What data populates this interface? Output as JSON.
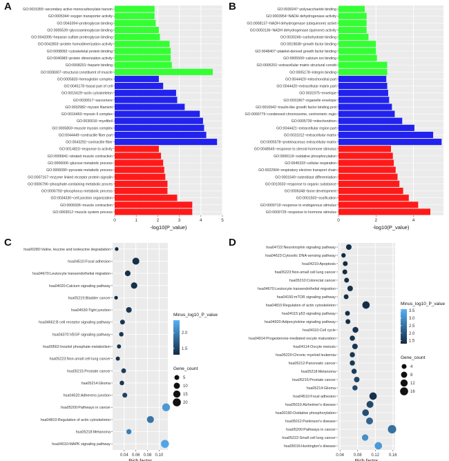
{
  "chart_data": [
    {
      "panel": "A",
      "type": "bar",
      "orientation": "horizontal",
      "xlabel": "-log10(P_value)",
      "xlim": [
        0,
        5
      ],
      "xticks": [
        0,
        1,
        2,
        3,
        4,
        5
      ],
      "colors": {
        "green": "#33ff33",
        "blue": "#2222ee",
        "red": "#ff1a1a"
      },
      "bars": [
        {
          "label": "GO:0015355~secondary active monocarboxylate transm",
          "value": 1.85,
          "group": "green"
        },
        {
          "label": "GO:0005344~oxygen transporter activity",
          "value": 1.85,
          "group": "green"
        },
        {
          "label": "GO:0043394~proteoglycan binding",
          "value": 1.9,
          "group": "green"
        },
        {
          "label": "GO:0005539~glycosaminoglycan binding",
          "value": 2.05,
          "group": "green"
        },
        {
          "label": "GO:0043395~heparan sulfate proteoglycan binding",
          "value": 2.1,
          "group": "green"
        },
        {
          "label": "GO:0042803~protein homodimerization activity",
          "value": 2.55,
          "group": "green"
        },
        {
          "label": "GO:0008092~cytoskeletal protein binding",
          "value": 2.6,
          "group": "green"
        },
        {
          "label": "GO:0046983~protein dimerization activity",
          "value": 2.6,
          "group": "green"
        },
        {
          "label": "GO:0008201~heparin binding",
          "value": 2.65,
          "group": "green"
        },
        {
          "label": "GO:0008307~structural constituent of muscle",
          "value": 4.55,
          "group": "green"
        },
        {
          "label": "GO:0005833~hemoglobin complex",
          "value": 2.05,
          "group": "blue"
        },
        {
          "label": "GO:0045178~basal part of cell",
          "value": 2.25,
          "group": "blue"
        },
        {
          "label": "GO:0015629~actin cytoskeleton",
          "value": 2.85,
          "group": "blue"
        },
        {
          "label": "GO:0030017~sarcomere",
          "value": 2.9,
          "group": "blue"
        },
        {
          "label": "GO:0032982~myosin filament",
          "value": 3.25,
          "group": "blue"
        },
        {
          "label": "GO:0016460~myosin II complex",
          "value": 3.95,
          "group": "blue"
        },
        {
          "label": "GO:0030016~myofibril",
          "value": 4.1,
          "group": "blue"
        },
        {
          "label": "GO:0005859~muscle myosin complex",
          "value": 4.15,
          "group": "blue"
        },
        {
          "label": "GO:0044449~contractile fiber part",
          "value": 4.25,
          "group": "blue"
        },
        {
          "label": "GO:0043292~contractile fiber",
          "value": 4.75,
          "group": "blue"
        },
        {
          "label": "GO:0014823~response to activity",
          "value": 2.05,
          "group": "red"
        },
        {
          "label": "GO:0006941~striated muscle contraction",
          "value": 2.15,
          "group": "red"
        },
        {
          "label": "GO:0006006~glucose metabolic process",
          "value": 2.25,
          "group": "red"
        },
        {
          "label": "GO:0006090~pyruvate metabolic process",
          "value": 2.3,
          "group": "red"
        },
        {
          "label": "GO:0007167~enzyme linked receptor protein signalin",
          "value": 2.35,
          "group": "red"
        },
        {
          "label": "GO:0006796~phosphate-containing metabolic proces",
          "value": 2.45,
          "group": "red"
        },
        {
          "label": "GO:0006793~phosphorus metabolic process",
          "value": 2.45,
          "group": "red"
        },
        {
          "label": "GO:0034330~cell junction organization",
          "value": 2.9,
          "group": "red"
        },
        {
          "label": "GO:0006936~muscle contraction",
          "value": 3.6,
          "group": "red"
        },
        {
          "label": "GO:0003012~muscle system process",
          "value": 3.6,
          "group": "red"
        }
      ]
    },
    {
      "panel": "B",
      "type": "bar",
      "orientation": "horizontal",
      "xlabel": "-log10(P_value)",
      "xlim": [
        0,
        5.6
      ],
      "xticks": [
        0,
        2,
        4
      ],
      "colors": {
        "green": "#33ff33",
        "blue": "#2222ee",
        "red": "#ff1a1a"
      },
      "bars": [
        {
          "label": "GO:0030247~polysaccharide binding",
          "value": 1.4,
          "group": "green"
        },
        {
          "label": "GO:0003954~NADH dehydrogenase activity",
          "value": 1.5,
          "group": "green"
        },
        {
          "label": "GO:0008137~NADH dehydrogenase (ubiquinone) activit",
          "value": 1.5,
          "group": "green"
        },
        {
          "label": "GO:0050136~NADH dehydrogenase (quinone) activity",
          "value": 1.5,
          "group": "green"
        },
        {
          "label": "GO:0030246~carbohydrate binding",
          "value": 1.6,
          "group": "green"
        },
        {
          "label": "GO:0019838~growth factor binding",
          "value": 2.0,
          "group": "green"
        },
        {
          "label": "GO:0048407~platelet-derived growth factor binding",
          "value": 2.0,
          "group": "green"
        },
        {
          "label": "GO:0005509~calcium ion binding",
          "value": 2.05,
          "group": "green"
        },
        {
          "label": "GO:0005201~extracellular matrix structural constit",
          "value": 2.6,
          "group": "green"
        },
        {
          "label": "GO:0005178~integrin binding",
          "value": 2.6,
          "group": "green"
        },
        {
          "label": "GO:0044429~mitochondrial part",
          "value": 2.55,
          "group": "blue"
        },
        {
          "label": "GO:0044420~extracellular matrix part",
          "value": 2.6,
          "group": "blue"
        },
        {
          "label": "GO:0031975~envelope",
          "value": 2.65,
          "group": "blue"
        },
        {
          "label": "GO:0031967~organelle envelope",
          "value": 2.7,
          "group": "blue"
        },
        {
          "label": "GO:0016942~insulin-like growth factor binding prot",
          "value": 2.85,
          "group": "blue"
        },
        {
          "label": "GO:0000779~condensed chromosome, centromeric regio",
          "value": 3.0,
          "group": "blue"
        },
        {
          "label": "GO:0005739~mitochondrion",
          "value": 3.4,
          "group": "blue"
        },
        {
          "label": "GO:0044421~extracellular region part",
          "value": 4.05,
          "group": "blue"
        },
        {
          "label": "GO:0031012~extracellular matrix",
          "value": 5.05,
          "group": "blue"
        },
        {
          "label": "GO:0005578~proteinaceous extracellular matrix",
          "value": 5.5,
          "group": "blue"
        },
        {
          "label": "GO:0048545~response to steroid hormone stimulus",
          "value": 2.8,
          "group": "red"
        },
        {
          "label": "GO:0006119~oxidative phosphorylation",
          "value": 2.9,
          "group": "red"
        },
        {
          "label": "GO:0045333~cellular respiration",
          "value": 2.95,
          "group": "red"
        },
        {
          "label": "GO:0022904~respiratory electron transport chain",
          "value": 3.05,
          "group": "red"
        },
        {
          "label": "GO:0001649~osteoblast differentiation",
          "value": 3.15,
          "group": "red"
        },
        {
          "label": "GO:0010033~response to organic substance",
          "value": 3.25,
          "group": "red"
        },
        {
          "label": "GO:0006348~bone development",
          "value": 3.45,
          "group": "red"
        },
        {
          "label": "GO:0001503~ossification",
          "value": 3.75,
          "group": "red"
        },
        {
          "label": "GO:0009719~response to endogenous stimulus",
          "value": 4.25,
          "group": "red"
        },
        {
          "label": "GO:0009725~response to hormone stimulus",
          "value": 4.9,
          "group": "red"
        }
      ]
    },
    {
      "panel": "C",
      "type": "scatter",
      "xlabel": "Rich factor",
      "xlim": [
        0.02,
        0.115
      ],
      "xticks": [
        0.04,
        0.06,
        0.08,
        0.1
      ],
      "xtick_labels": [
        "0.04",
        "0.06",
        "0.08",
        "0.10"
      ],
      "color_legend": {
        "title": "Minus_log10_P_value",
        "min": 1.3,
        "max": 2.4,
        "ticks": [
          1.5,
          2.0
        ],
        "tick_labels": [
          "1.5",
          "2.0"
        ]
      },
      "size_legend": {
        "title": "Gene_count",
        "values": [
          5,
          10,
          15,
          20
        ],
        "labels": [
          "5",
          "10",
          "15",
          "20"
        ]
      },
      "points": [
        {
          "label": "hsa00280:Valine, leucine and isoleucine degradation",
          "x": 0.027,
          "size": 2,
          "color": 1.3
        },
        {
          "label": "hsa04510:Focal adhesion",
          "x": 0.06,
          "size": 14,
          "color": 1.35
        },
        {
          "label": "hsa04670:Leukocyte transendothelial migration",
          "x": 0.046,
          "size": 8,
          "color": 1.35
        },
        {
          "label": "hsa04020:Calcium signaling pathway",
          "x": 0.057,
          "size": 11,
          "color": 1.35
        },
        {
          "label": "hsa05219:Bladder cancer",
          "x": 0.026,
          "size": 2,
          "color": 1.3
        },
        {
          "label": "hsa04530:Tight junction",
          "x": 0.048,
          "size": 8,
          "color": 1.4
        },
        {
          "label": "hsa04662:B cell receptor signaling pathway",
          "x": 0.037,
          "size": 5,
          "color": 1.4
        },
        {
          "label": "hsa04370:VEGF signaling pathway",
          "x": 0.035,
          "size": 4,
          "color": 1.4
        },
        {
          "label": "hsa00562:Inositol phosphate metabolism",
          "x": 0.031,
          "size": 3,
          "color": 1.35
        },
        {
          "label": "hsa05223:Non-small cell lung cancer",
          "x": 0.029,
          "size": 3,
          "color": 1.35
        },
        {
          "label": "hsa05215:Prostate cancer",
          "x": 0.039,
          "size": 5,
          "color": 1.45
        },
        {
          "label": "hsa05214:Glioma",
          "x": 0.036,
          "size": 4,
          "color": 1.4
        },
        {
          "label": "hsa04520:Adherens junction",
          "x": 0.041,
          "size": 5,
          "color": 1.5
        },
        {
          "label": "hsa05200:Pathways in cancer",
          "x": 0.112,
          "size": 19,
          "color": 2.2
        },
        {
          "label": "hsa04810:Regulation of actin cytoskeleton",
          "x": 0.085,
          "size": 14,
          "color": 1.9
        },
        {
          "label": "hsa05218:Melanoma",
          "x": 0.048,
          "size": 6,
          "color": 2.0
        },
        {
          "label": "hsa04010:MAPK signaling pathway",
          "x": 0.11,
          "size": 20,
          "color": 2.3
        }
      ]
    },
    {
      "panel": "D",
      "type": "scatter",
      "xlabel": "Rich factor",
      "xlim": [
        0.035,
        0.165
      ],
      "xticks": [
        0.04,
        0.08,
        0.12,
        0.16
      ],
      "xtick_labels": [
        "0.04",
        "0.08",
        "0.12",
        "0.16"
      ],
      "color_legend": {
        "title": "Minus_log10_P_value",
        "min": 1.3,
        "max": 3.6,
        "ticks": [
          1.5,
          2.0,
          2.5,
          3.0,
          3.5
        ],
        "tick_labels": [
          "1.5",
          "2.0",
          "2.5",
          "3.0",
          "3.5"
        ]
      },
      "size_legend": {
        "title": "Gene_count",
        "values": [
          4,
          8,
          12,
          16
        ],
        "labels": [
          "4",
          "8",
          "12",
          "16"
        ]
      },
      "points": [
        {
          "label": "hsa04722:Neurotrophin signaling pathway",
          "x": 0.06,
          "size": 6,
          "color": 1.35
        },
        {
          "label": "hsa04623:Cytosolic DNA-sensing pathway",
          "x": 0.048,
          "size": 3,
          "color": 1.3
        },
        {
          "label": "hsa04210:Apoptosis",
          "x": 0.052,
          "size": 4,
          "color": 1.3
        },
        {
          "label": "hsa05223:Non-small cell lung cancer",
          "x": 0.051,
          "size": 4,
          "color": 1.3
        },
        {
          "label": "hsa05210:Colorectal cancer",
          "x": 0.055,
          "size": 4,
          "color": 1.35
        },
        {
          "label": "hsa04670:Leukocyte transendothelial migration",
          "x": 0.063,
          "size": 6,
          "color": 1.4
        },
        {
          "label": "hsa04150:mTOR signaling pathway",
          "x": 0.054,
          "size": 4,
          "color": 1.35
        },
        {
          "label": "hsa04810:Regulation of actin cytoskeleton",
          "x": 0.099,
          "size": 13,
          "color": 1.35
        },
        {
          "label": "hsa04115:p53 signaling pathway",
          "x": 0.057,
          "size": 4,
          "color": 1.35
        },
        {
          "label": "hsa04920:Adipocytokine signaling pathway",
          "x": 0.058,
          "size": 4,
          "color": 1.35
        },
        {
          "label": "hsa04110:Cell cycle",
          "x": 0.075,
          "size": 7,
          "color": 1.45
        },
        {
          "label": "hsa04914:Progesterone-mediated oocyte maturation",
          "x": 0.068,
          "size": 5,
          "color": 1.45
        },
        {
          "label": "hsa04114:Oocyte meiosis",
          "x": 0.074,
          "size": 6,
          "color": 1.5
        },
        {
          "label": "hsa05220:Chronic myeloid leukemia",
          "x": 0.068,
          "size": 5,
          "color": 1.5
        },
        {
          "label": "hsa05212:Pancreatic cancer",
          "x": 0.068,
          "size": 5,
          "color": 1.55
        },
        {
          "label": "hsa05218:Melanoma",
          "x": 0.072,
          "size": 5,
          "color": 1.6
        },
        {
          "label": "hsa05215:Prostate cancer",
          "x": 0.078,
          "size": 6,
          "color": 1.75
        },
        {
          "label": "hsa05214:Glioma",
          "x": 0.074,
          "size": 5,
          "color": 1.8
        },
        {
          "label": "hsa04510:Focal adhesion",
          "x": 0.115,
          "size": 13,
          "color": 1.4
        },
        {
          "label": "hsa05010:Alzheimer's disease",
          "x": 0.108,
          "size": 11,
          "color": 1.8
        },
        {
          "label": "hsa00190:Oxidative phosphorylation",
          "x": 0.098,
          "size": 10,
          "color": 1.9
        },
        {
          "label": "hsa05012:Parkinson's disease",
          "x": 0.107,
          "size": 11,
          "color": 2.3
        },
        {
          "label": "hsa05200:Pathways in cancer",
          "x": 0.158,
          "size": 18,
          "color": 2.5
        },
        {
          "label": "hsa05222:Small cell lung cancer",
          "x": 0.097,
          "size": 9,
          "color": 3.0
        },
        {
          "label": "hsa05016:Huntington's disease",
          "x": 0.127,
          "size": 13,
          "color": 3.2
        }
      ]
    }
  ]
}
